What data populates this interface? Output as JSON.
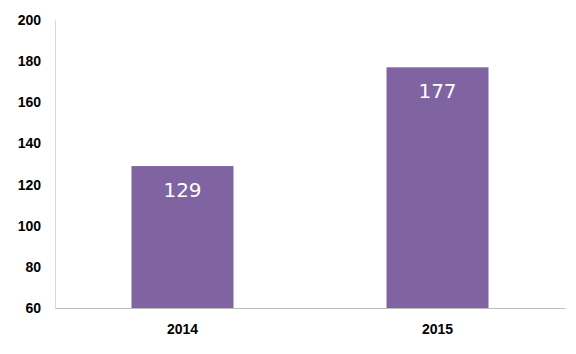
{
  "chart_data": {
    "type": "bar",
    "categories": [
      "2014",
      "2015"
    ],
    "values": [
      129,
      177
    ],
    "color": "#8064a2",
    "ylim": [
      60,
      200
    ],
    "yticks": [
      60,
      80,
      100,
      120,
      140,
      160,
      180,
      200
    ],
    "grid": false,
    "data_labels": true
  }
}
